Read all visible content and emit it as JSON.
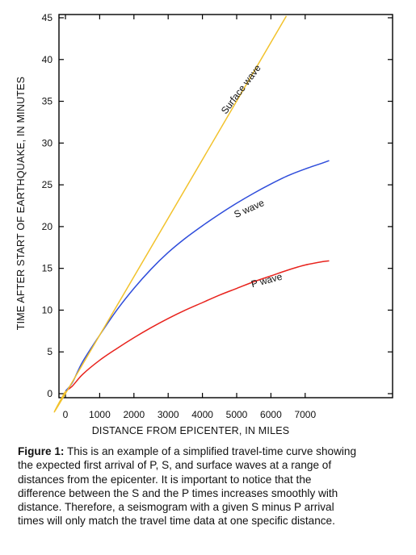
{
  "chart_data": {
    "type": "line",
    "xlabel": "DISTANCE FROM EPICENTER, IN MILES",
    "ylabel": "TIME AFTER START OF EARTHQUAKE, IN MINUTES",
    "xlim": [
      0,
      8000
    ],
    "ylim": [
      0,
      45
    ],
    "x_ticks": [
      0,
      1000,
      2000,
      3000,
      4000,
      5000,
      6000,
      7000
    ],
    "y_ticks": [
      0,
      5,
      10,
      15,
      20,
      25,
      30,
      35,
      40,
      45
    ],
    "grid": false,
    "series": [
      {
        "name": "P wave",
        "color": "#e8231d",
        "x": [
          0,
          200,
          500,
          1000,
          1500,
          2000,
          2500,
          3000,
          3500,
          4000,
          4500,
          5000,
          5500,
          6000,
          6500,
          7000,
          7500,
          7700
        ],
        "y": [
          0.3,
          0.9,
          2.3,
          4.0,
          5.4,
          6.7,
          7.9,
          9.0,
          10.0,
          10.9,
          11.8,
          12.6,
          13.4,
          14.1,
          14.8,
          15.4,
          15.8,
          15.9
        ]
      },
      {
        "name": "S wave",
        "color": "#2f4ddb",
        "x": [
          0,
          200,
          500,
          1000,
          1500,
          2000,
          2500,
          3000,
          3500,
          4000,
          4500,
          5000,
          5500,
          6000,
          6500,
          7000,
          7500,
          7700
        ],
        "y": [
          0.3,
          1.3,
          3.8,
          7.0,
          10.0,
          12.6,
          14.9,
          16.9,
          18.6,
          20.1,
          21.5,
          22.8,
          24.0,
          25.1,
          26.1,
          26.9,
          27.6,
          27.9
        ]
      },
      {
        "name": "Surface wave",
        "color": "#f2c22c",
        "x": [
          0,
          200,
          6450
        ],
        "y": [
          0.3,
          1.4,
          45.2
        ]
      }
    ]
  },
  "caption": {
    "title": "Figure 1:",
    "lines": [
      "This is an example of a simplified travel-time curve showing",
      "the expected first arrival of P, S, and surface waves at a range of",
      "distances from the epicenter. It is important to notice that the",
      "difference between the S and the P times increases smoothly with",
      "distance. Therefore, a seismogram with a given S minus P arrival",
      "times will only match the travel time data at one specific distance."
    ]
  }
}
